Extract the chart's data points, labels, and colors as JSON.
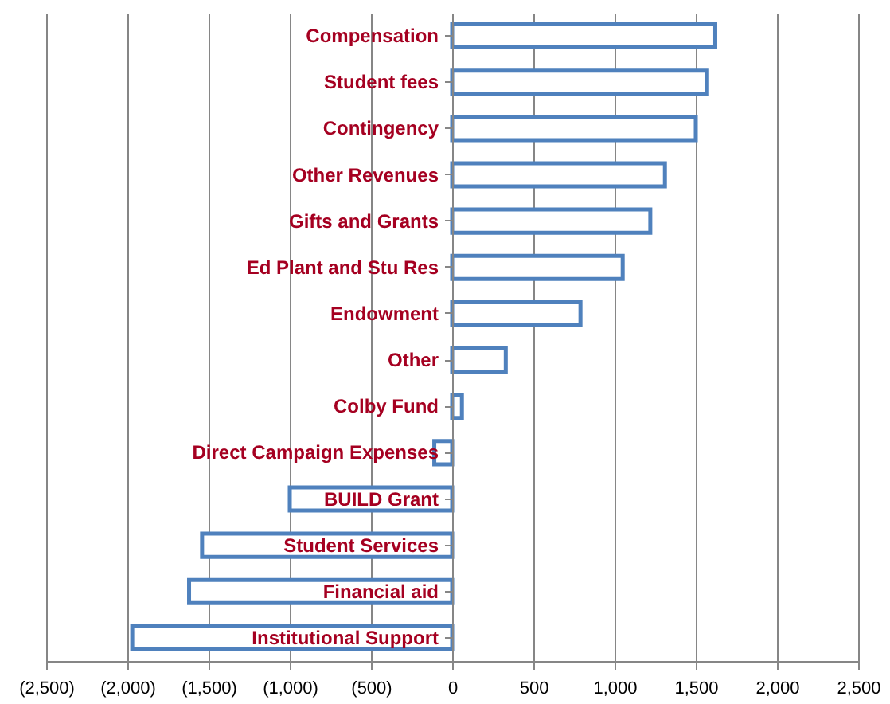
{
  "chart_data": {
    "type": "bar",
    "orientation": "horizontal",
    "categories": [
      "Compensation",
      "Student fees",
      "Contingency",
      "Other Revenues",
      "Gifts and Grants",
      "Ed Plant and Stu Res",
      "Endowment",
      "Other",
      "Colby Fund",
      "Direct Campaign Expenses",
      "BUILD Grant",
      "Student Services",
      "Financial aid",
      "Institutional Support"
    ],
    "values": [
      1620,
      1570,
      1500,
      1310,
      1220,
      1050,
      790,
      330,
      60,
      -110,
      -1000,
      -1540,
      -1620,
      -1970
    ],
    "color": "#4f81bd",
    "xlim": [
      -2500,
      2500
    ],
    "xticks": [
      {
        "value": -2500,
        "label": "(2,500)"
      },
      {
        "value": -2000,
        "label": "(2,000)"
      },
      {
        "value": -1500,
        "label": "(1,500)"
      },
      {
        "value": -1000,
        "label": "(1,000)"
      },
      {
        "value": -500,
        "label": "(500)"
      },
      0,
      500,
      {
        "value": 1000,
        "label": "1,000"
      },
      {
        "value": 1500,
        "label": "1,500"
      },
      {
        "value": 2000,
        "label": "2,000"
      },
      {
        "value": 2500,
        "label": "2,500"
      }
    ],
    "grid": "x"
  }
}
